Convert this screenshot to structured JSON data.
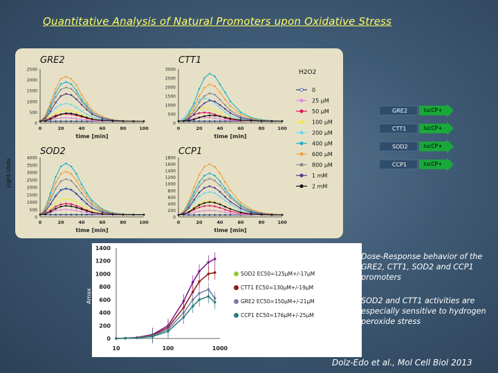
{
  "title": "Quantitative Analysis of Natural Promoters upon Oxidative Stress",
  "panel": {
    "ylabel": "Light Units",
    "xlabel": "time [min]",
    "xticks": [
      "0",
      "20",
      "40",
      "60",
      "80",
      "100"
    ],
    "legend_title": "H2O2"
  },
  "concentrations": [
    {
      "label": "0",
      "color": "#1f3e7a"
    },
    {
      "label": "25 µM",
      "color": "#e08adf"
    },
    {
      "label": "50 µM",
      "color": "#d9155d"
    },
    {
      "label": "100 µM",
      "color": "#f2e64a"
    },
    {
      "label": "200 µM",
      "color": "#70d6e8"
    },
    {
      "label": "400 µM",
      "color": "#1fb2c8"
    },
    {
      "label": "600 µM",
      "color": "#f0a040"
    },
    {
      "label": "800 µM",
      "color": "#8a8a8a"
    },
    {
      "label": "1 mM",
      "color": "#4c3b88"
    },
    {
      "label": "2 mM",
      "color": "#111111"
    }
  ],
  "constructs": [
    {
      "name": "GRE2",
      "reporter": "lucCP+"
    },
    {
      "name": "CTT1",
      "reporter": "lucCP+"
    },
    {
      "name": "SOD2",
      "reporter": "lucCP+"
    },
    {
      "name": "CCP1",
      "reporter": "lucCP+"
    }
  ],
  "lower": {
    "ylabel": "Amax",
    "xlabel": "H2O2 [µM]",
    "yticks": [
      "0",
      "200",
      "400",
      "600",
      "800",
      "1000",
      "1200",
      "1400"
    ],
    "xticks": [
      "10",
      "100",
      "1000"
    ]
  },
  "ec50_legend": [
    {
      "text": "SOD2 EC50=125µM+/-17µM",
      "color": "#8fc93a"
    },
    {
      "text": "CTT1 EC50=130µM+/-19µM",
      "color": "#8b1a1a"
    },
    {
      "text": "GRE2 EC50=150µM+/-21µM",
      "color": "#7b7ba8"
    },
    {
      "text": "CCP1 EC50=176µM+/-25µM",
      "color": "#2a7a7a"
    }
  ],
  "description": "Dose-Response behavior of the GRE2, CTT1, SOD2 and CCP1 promoters",
  "note": "SOD2 and CTT1 activities are especially sensitive to hydrogen peroxide stress",
  "citation": "Dolz-Edo et al., Mol Cell Biol 2013",
  "chart_data": [
    {
      "type": "line",
      "title": "GRE2",
      "xlabel": "time [min]",
      "ylabel": "Light Units",
      "xlim": [
        0,
        100
      ],
      "ylim": [
        0,
        2500
      ],
      "x": [
        0,
        5,
        10,
        15,
        20,
        25,
        30,
        35,
        40,
        45,
        50,
        60,
        70,
        80,
        90,
        100
      ],
      "series": [
        {
          "name": "0",
          "values": [
            80,
            80,
            80,
            80,
            80,
            80,
            80,
            80,
            80,
            80,
            80,
            80,
            80,
            80,
            80,
            80
          ]
        },
        {
          "name": "25 µM",
          "values": [
            80,
            100,
            150,
            200,
            230,
            240,
            230,
            200,
            170,
            140,
            110,
            90,
            80,
            80,
            80,
            80
          ]
        },
        {
          "name": "50 µM",
          "values": [
            80,
            130,
            250,
            350,
            400,
            420,
            400,
            350,
            290,
            220,
            160,
            110,
            90,
            80,
            80,
            80
          ]
        },
        {
          "name": "100 µM",
          "values": [
            80,
            160,
            300,
            450,
            540,
            580,
            560,
            480,
            380,
            280,
            200,
            120,
            90,
            80,
            80,
            80
          ]
        },
        {
          "name": "200 µM",
          "values": [
            80,
            200,
            450,
            700,
            850,
            900,
            850,
            720,
            550,
            400,
            270,
            150,
            100,
            80,
            80,
            80
          ]
        },
        {
          "name": "400 µM",
          "values": [
            80,
            300,
            800,
            1400,
            1800,
            1900,
            1800,
            1500,
            1100,
            800,
            500,
            250,
            140,
            100,
            90,
            80
          ]
        },
        {
          "name": "600 µM",
          "values": [
            80,
            350,
            950,
            1600,
            2050,
            2150,
            2050,
            1750,
            1300,
            950,
            600,
            300,
            150,
            100,
            90,
            80
          ]
        },
        {
          "name": "800 µM",
          "values": [
            80,
            250,
            700,
            1200,
            1550,
            1650,
            1580,
            1350,
            1000,
            750,
            480,
            250,
            130,
            100,
            90,
            80
          ]
        },
        {
          "name": "1 mM",
          "values": [
            80,
            200,
            550,
            950,
            1250,
            1350,
            1300,
            1100,
            850,
            620,
            400,
            200,
            120,
            90,
            80,
            80
          ]
        },
        {
          "name": "2 mM",
          "values": [
            80,
            100,
            180,
            300,
            400,
            450,
            440,
            390,
            320,
            250,
            180,
            120,
            90,
            80,
            80,
            80
          ]
        }
      ]
    },
    {
      "type": "line",
      "title": "CTT1",
      "xlabel": "time [min]",
      "ylabel": "Light Units",
      "xlim": [
        0,
        100
      ],
      "ylim": [
        0,
        3000
      ],
      "x": [
        0,
        5,
        10,
        15,
        20,
        25,
        30,
        35,
        40,
        45,
        50,
        60,
        70,
        80,
        90,
        100
      ],
      "series": [
        {
          "name": "0",
          "values": [
            100,
            100,
            100,
            100,
            100,
            100,
            100,
            100,
            100,
            100,
            100,
            100,
            100,
            100,
            100,
            100
          ]
        },
        {
          "name": "25 µM",
          "values": [
            100,
            120,
            180,
            250,
            300,
            310,
            300,
            260,
            220,
            180,
            150,
            120,
            100,
            100,
            100,
            100
          ]
        },
        {
          "name": "50 µM",
          "values": [
            100,
            150,
            300,
            450,
            550,
            580,
            560,
            480,
            380,
            280,
            200,
            130,
            110,
            100,
            100,
            100
          ]
        },
        {
          "name": "100 µM",
          "values": [
            100,
            180,
            400,
            650,
            800,
            850,
            820,
            700,
            550,
            400,
            270,
            150,
            110,
            100,
            100,
            100
          ]
        },
        {
          "name": "200 µM",
          "values": [
            100,
            250,
            650,
            1050,
            1300,
            1380,
            1320,
            1100,
            850,
            600,
            400,
            200,
            120,
            100,
            100,
            100
          ]
        },
        {
          "name": "400 µM",
          "values": [
            100,
            150,
            500,
            1100,
            1900,
            2500,
            2750,
            2600,
            2150,
            1700,
            1200,
            600,
            300,
            180,
            130,
            110
          ]
        },
        {
          "name": "600 µM",
          "values": [
            100,
            130,
            400,
            900,
            1500,
            1950,
            2150,
            2050,
            1700,
            1300,
            950,
            480,
            250,
            150,
            120,
            100
          ]
        },
        {
          "name": "800 µM",
          "values": [
            100,
            120,
            300,
            700,
            1150,
            1500,
            1650,
            1580,
            1300,
            1000,
            700,
            350,
            200,
            130,
            110,
            100
          ]
        },
        {
          "name": "1 mM",
          "values": [
            100,
            110,
            220,
            500,
            850,
            1100,
            1250,
            1200,
            1000,
            780,
            550,
            280,
            160,
            120,
            100,
            100
          ]
        },
        {
          "name": "2 mM",
          "values": [
            100,
            105,
            130,
            200,
            300,
            380,
            420,
            410,
            370,
            310,
            250,
            160,
            120,
            100,
            100,
            100
          ]
        }
      ]
    },
    {
      "type": "line",
      "title": "SOD2",
      "xlabel": "time [min]",
      "ylabel": "Light Units",
      "xlim": [
        0,
        100
      ],
      "ylim": [
        0,
        4000
      ],
      "x": [
        0,
        5,
        10,
        15,
        20,
        25,
        30,
        35,
        40,
        45,
        50,
        60,
        70,
        80,
        90,
        100
      ],
      "series": [
        {
          "name": "0",
          "values": [
            150,
            150,
            150,
            150,
            150,
            150,
            150,
            150,
            150,
            150,
            150,
            150,
            150,
            150,
            150,
            150
          ]
        },
        {
          "name": "25 µM",
          "values": [
            150,
            200,
            300,
            420,
            480,
            500,
            480,
            420,
            350,
            280,
            220,
            170,
            150,
            150,
            150,
            150
          ]
        },
        {
          "name": "50 µM",
          "values": [
            150,
            250,
            450,
            700,
            850,
            900,
            870,
            750,
            600,
            450,
            320,
            200,
            160,
            150,
            150,
            150
          ]
        },
        {
          "name": "100 µM",
          "values": [
            150,
            300,
            600,
            950,
            1150,
            1200,
            1150,
            1000,
            800,
            600,
            420,
            240,
            170,
            150,
            150,
            150
          ]
        },
        {
          "name": "200 µM",
          "values": [
            150,
            400,
            900,
            1500,
            1850,
            1950,
            1850,
            1600,
            1250,
            900,
            620,
            320,
            200,
            160,
            150,
            150
          ]
        },
        {
          "name": "400 µM",
          "values": [
            150,
            600,
            1600,
            2700,
            3400,
            3600,
            3400,
            2900,
            2200,
            1600,
            1100,
            520,
            280,
            190,
            160,
            150
          ]
        },
        {
          "name": "600 µM",
          "values": [
            150,
            550,
            1400,
            2300,
            2900,
            3050,
            2900,
            2450,
            1900,
            1400,
            950,
            460,
            260,
            180,
            160,
            150
          ]
        },
        {
          "name": "800 µM",
          "values": [
            150,
            450,
            1150,
            1900,
            2400,
            2550,
            2430,
            2050,
            1600,
            1150,
            800,
            400,
            230,
            170,
            160,
            150
          ]
        },
        {
          "name": "1 mM",
          "values": [
            150,
            350,
            850,
            1400,
            1800,
            1900,
            1820,
            1550,
            1200,
            880,
            600,
            310,
            200,
            160,
            150,
            150
          ]
        },
        {
          "name": "2 mM",
          "values": [
            150,
            200,
            350,
            550,
            700,
            750,
            720,
            630,
            520,
            400,
            300,
            200,
            160,
            150,
            150,
            150
          ]
        }
      ]
    },
    {
      "type": "line",
      "title": "CCP1",
      "xlabel": "time [min]",
      "ylabel": "Light Units",
      "xlim": [
        0,
        100
      ],
      "ylim": [
        0,
        1800
      ],
      "x": [
        0,
        5,
        10,
        15,
        20,
        25,
        30,
        35,
        40,
        45,
        50,
        60,
        70,
        80,
        90,
        100
      ],
      "series": [
        {
          "name": "0",
          "values": [
            60,
            60,
            60,
            60,
            60,
            60,
            60,
            60,
            60,
            60,
            60,
            60,
            60,
            60,
            60,
            60
          ]
        },
        {
          "name": "25 µM",
          "values": [
            60,
            70,
            100,
            140,
            170,
            190,
            200,
            190,
            170,
            140,
            110,
            80,
            70,
            60,
            60,
            60
          ]
        },
        {
          "name": "50 µM",
          "values": [
            60,
            80,
            140,
            220,
            290,
            330,
            340,
            320,
            280,
            220,
            170,
            110,
            80,
            70,
            60,
            60
          ]
        },
        {
          "name": "100 µM",
          "values": [
            60,
            90,
            180,
            300,
            400,
            460,
            480,
            450,
            390,
            310,
            240,
            140,
            90,
            70,
            60,
            60
          ]
        },
        {
          "name": "200 µM",
          "values": [
            60,
            110,
            250,
            450,
            620,
            720,
            760,
            720,
            620,
            500,
            380,
            210,
            120,
            80,
            70,
            60
          ]
        },
        {
          "name": "400 µM",
          "values": [
            60,
            150,
            400,
            750,
            1050,
            1250,
            1320,
            1250,
            1080,
            860,
            650,
            360,
            190,
            110,
            80,
            70
          ]
        },
        {
          "name": "600 µM",
          "values": [
            60,
            170,
            480,
            900,
            1280,
            1520,
            1600,
            1520,
            1320,
            1050,
            800,
            440,
            230,
            130,
            90,
            70
          ]
        },
        {
          "name": "800 µM",
          "values": [
            60,
            130,
            350,
            650,
            920,
            1100,
            1160,
            1100,
            950,
            760,
            580,
            320,
            170,
            100,
            80,
            70
          ]
        },
        {
          "name": "1 mM",
          "values": [
            60,
            110,
            280,
            520,
            740,
            880,
            930,
            880,
            760,
            610,
            460,
            260,
            140,
            90,
            70,
            60
          ]
        },
        {
          "name": "2 mM",
          "values": [
            60,
            80,
            150,
            260,
            360,
            420,
            450,
            430,
            380,
            310,
            240,
            140,
            90,
            70,
            60,
            60
          ]
        }
      ]
    },
    {
      "type": "line",
      "xlabel": "H2O2 [µM]",
      "ylabel": "Amax",
      "xscale": "log",
      "xlim": [
        10,
        1000
      ],
      "ylim": [
        0,
        1400
      ],
      "x": [
        10,
        15,
        25,
        50,
        100,
        200,
        300,
        400,
        600,
        800
      ],
      "series": [
        {
          "name": "SOD2 EC50=125µM+/-17µM",
          "values": [
            0,
            5,
            15,
            60,
            200,
            580,
            870,
            1040,
            1180,
            1230
          ]
        },
        {
          "name": "CTT1 EC50=130µM+/-19µM",
          "values": [
            0,
            5,
            12,
            50,
            170,
            480,
            720,
            880,
            1000,
            1020
          ]
        },
        {
          "name": "GRE2 EC50=150µM+/-21µM",
          "values": [
            0,
            3,
            10,
            40,
            140,
            400,
            600,
            700,
            760,
            620
          ]
        },
        {
          "name": "CCP1 EC50=176µM+/-25µM",
          "values": [
            0,
            2,
            8,
            30,
            110,
            330,
            500,
            600,
            650,
            560
          ]
        }
      ]
    }
  ]
}
